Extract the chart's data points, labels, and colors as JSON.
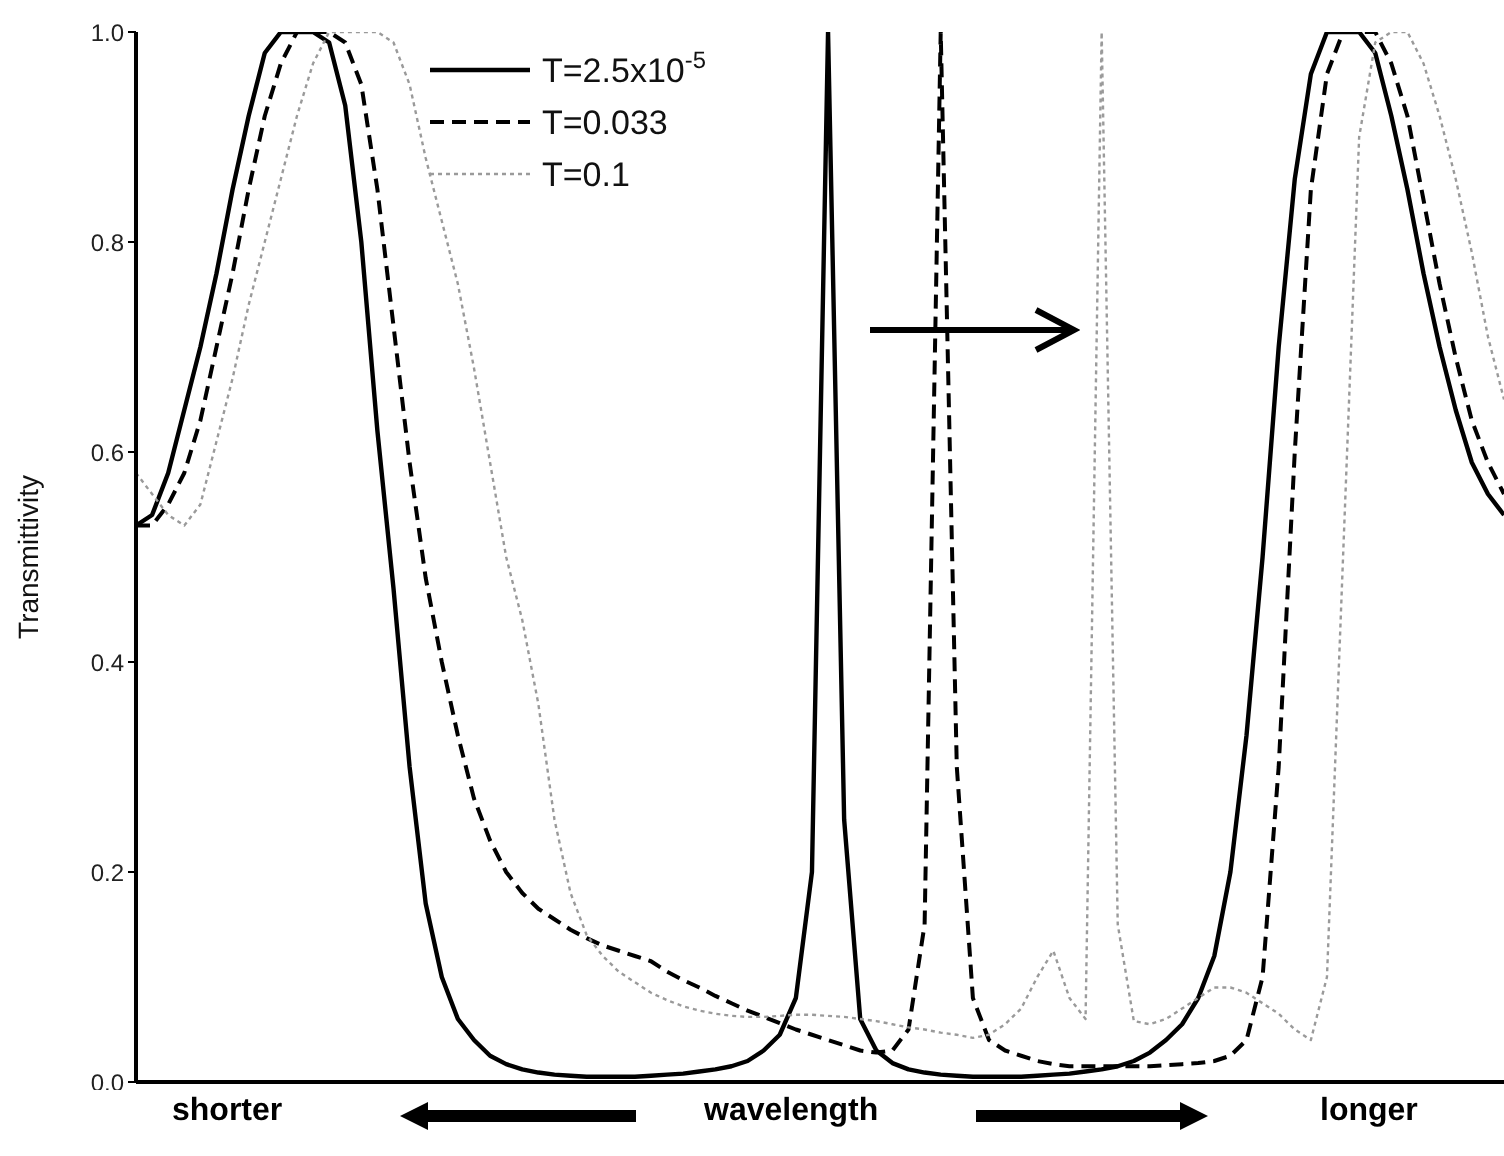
{
  "chart_data": {
    "type": "line",
    "ylabel": "Transmittivity",
    "xlabel": "wavelength",
    "annotations": [
      "shorter",
      "longer"
    ],
    "categories": [
      null,
      null,
      null,
      null,
      null,
      null,
      null,
      null,
      null,
      null,
      null,
      null,
      null,
      null,
      null,
      null,
      null,
      null,
      null,
      null,
      null,
      null,
      null,
      null,
      null,
      null,
      null,
      null,
      null,
      null,
      null,
      null,
      null,
      null,
      null,
      null,
      null,
      null,
      null,
      null,
      null,
      null,
      null,
      null,
      null,
      null,
      null,
      null,
      null,
      null,
      null,
      null,
      null,
      null,
      null,
      null,
      null,
      null,
      null,
      null,
      null,
      null,
      null,
      null,
      null,
      null,
      null,
      null,
      null,
      null,
      null,
      null,
      null,
      null,
      null,
      null,
      null,
      null,
      null,
      null,
      null,
      null,
      null,
      null,
      null,
      null
    ],
    "series": [
      {
        "name": "T=2.5x10$^{-5}$",
        "color": "#000000",
        "line_style": "solid",
        "values": [
          0.53,
          0.54,
          0.58,
          0.64,
          0.7,
          0.77,
          0.85,
          0.92,
          0.98,
          1.0,
          1.0,
          1.0,
          0.99,
          0.93,
          0.8,
          0.62,
          0.47,
          0.3,
          0.17,
          0.1,
          0.06,
          0.04,
          0.025,
          0.017,
          0.012,
          0.009,
          0.007,
          0.006,
          0.005,
          0.005,
          0.005,
          0.005,
          0.006,
          0.007,
          0.008,
          0.01,
          0.012,
          0.015,
          0.02,
          0.03,
          0.045,
          0.08,
          0.2,
          1.0,
          0.25,
          0.06,
          0.03,
          0.018,
          0.012,
          0.009,
          0.007,
          0.006,
          0.005,
          0.005,
          0.005,
          0.005,
          0.006,
          0.007,
          0.008,
          0.01,
          0.012,
          0.015,
          0.02,
          0.028,
          0.04,
          0.055,
          0.08,
          0.12,
          0.2,
          0.33,
          0.5,
          0.7,
          0.86,
          0.96,
          1.0,
          1.0,
          1.0,
          0.98,
          0.92,
          0.85,
          0.77,
          0.7,
          0.64,
          0.59,
          0.56,
          0.54
        ]
      },
      {
        "name": "T=0.033",
        "color": "#000000",
        "line_style": "dashed",
        "values": [
          0.53,
          0.53,
          0.55,
          0.58,
          0.63,
          0.7,
          0.77,
          0.85,
          0.92,
          0.97,
          1.0,
          1.0,
          1.0,
          0.99,
          0.95,
          0.85,
          0.72,
          0.59,
          0.48,
          0.4,
          0.33,
          0.27,
          0.23,
          0.2,
          0.18,
          0.165,
          0.155,
          0.145,
          0.137,
          0.13,
          0.125,
          0.12,
          0.115,
          0.105,
          0.097,
          0.09,
          0.082,
          0.075,
          0.068,
          0.062,
          0.056,
          0.05,
          0.045,
          0.04,
          0.035,
          0.03,
          0.028,
          0.03,
          0.05,
          0.15,
          1.0,
          0.3,
          0.08,
          0.04,
          0.03,
          0.025,
          0.02,
          0.017,
          0.015,
          0.015,
          0.015,
          0.015,
          0.015,
          0.015,
          0.016,
          0.017,
          0.018,
          0.02,
          0.025,
          0.04,
          0.1,
          0.3,
          0.6,
          0.85,
          0.96,
          1.0,
          1.0,
          1.0,
          0.97,
          0.92,
          0.84,
          0.76,
          0.69,
          0.63,
          0.59,
          0.56
        ]
      },
      {
        "name": "T=0.1",
        "color": "#9a9a9a",
        "line_style": "dotted",
        "values": [
          0.58,
          0.56,
          0.54,
          0.53,
          0.55,
          0.61,
          0.67,
          0.74,
          0.8,
          0.86,
          0.92,
          0.97,
          1.0,
          1.0,
          1.0,
          1.0,
          0.99,
          0.95,
          0.88,
          0.82,
          0.76,
          0.68,
          0.59,
          0.5,
          0.44,
          0.36,
          0.25,
          0.18,
          0.14,
          0.12,
          0.105,
          0.095,
          0.085,
          0.078,
          0.072,
          0.068,
          0.065,
          0.063,
          0.062,
          0.062,
          0.063,
          0.064,
          0.064,
          0.063,
          0.062,
          0.06,
          0.058,
          0.055,
          0.052,
          0.05,
          0.047,
          0.045,
          0.042,
          0.045,
          0.055,
          0.07,
          0.1,
          0.125,
          0.08,
          0.06,
          1.0,
          0.15,
          0.058,
          0.055,
          0.06,
          0.07,
          0.08,
          0.09,
          0.09,
          0.085,
          0.075,
          0.065,
          0.05,
          0.04,
          0.1,
          0.5,
          0.9,
          0.99,
          1.0,
          1.0,
          0.97,
          0.92,
          0.86,
          0.79,
          0.71,
          0.65
        ]
      }
    ],
    "ylim": [
      0,
      1
    ],
    "yticks": [
      {
        "value": 0,
        "label": "0.0"
      },
      {
        "value": 0.2,
        "label": "0.2"
      },
      {
        "value": 0.4,
        "label": "0.4"
      },
      {
        "value": 0.6,
        "label": "0.6"
      },
      {
        "value": 0.8,
        "label": "0.8"
      },
      {
        "value": 1,
        "label": "1.0"
      }
    ],
    "tick_labels": "y",
    "legend": "top left",
    "marker": "none"
  }
}
